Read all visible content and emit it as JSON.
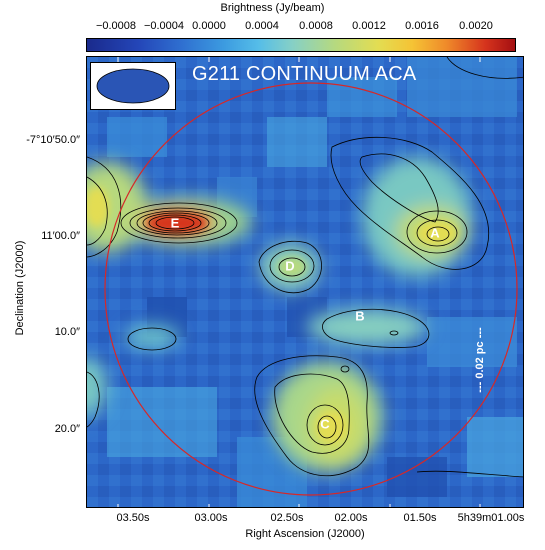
{
  "colorbar": {
    "label": "Brightness (Jy/beam)",
    "ticks": [
      "−0.0008",
      "−0.0004",
      "0.0000",
      "0.0004",
      "0.0008",
      "0.0012",
      "0.0016",
      "0.0020"
    ]
  },
  "map": {
    "title": "G211 CONTINUUM ACA",
    "sources": [
      "A",
      "B",
      "C",
      "D",
      "E"
    ],
    "scale_bar": "--- 0.02 pc ---",
    "colors": {
      "background_noise": "#2f6fd0",
      "circle": "#d62828",
      "contour": "#000000"
    }
  },
  "axes": {
    "y_title": "Declination (J2000)",
    "y_ticks": [
      "-7°10′50.0″",
      "11′00.0″",
      "10.0″",
      "20.0″"
    ],
    "x_title": "Right Ascension (J2000)",
    "x_ticks": [
      "03.50s",
      "03.00s",
      "02.50s",
      "02.00s",
      "01.50s",
      "5h39m01.00s"
    ]
  }
}
